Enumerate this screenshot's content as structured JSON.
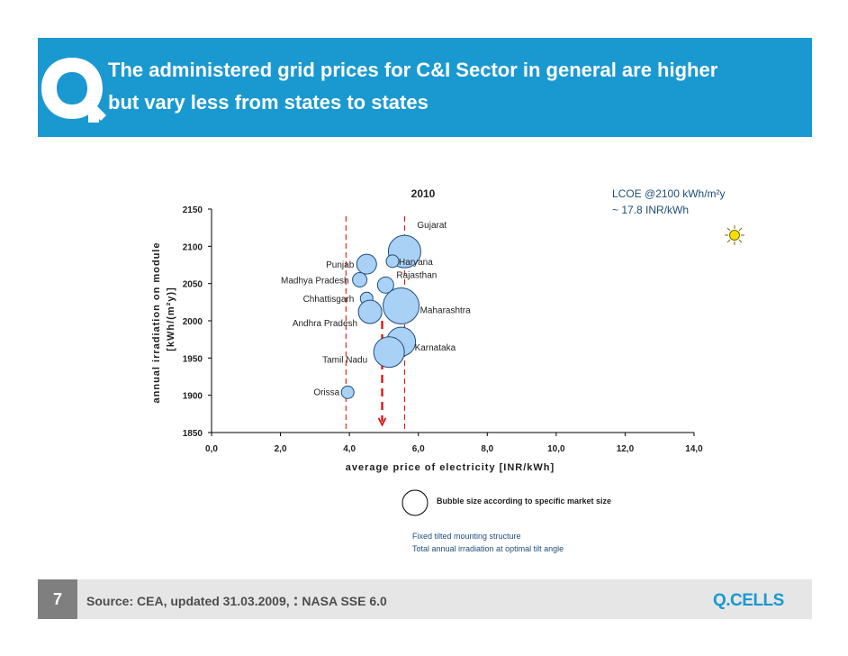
{
  "slide": {
    "title_line1": "The administered grid prices for C&I Sector in general are higher",
    "title_line2": "but vary less from states to states",
    "page_number": "7",
    "source": "Source: CEA, updated 31.03.2009, ",
    "source_colon": ":",
    "source_tail": " NASA SSE 6.0",
    "logo_text": "Q.CELLS"
  },
  "colors": {
    "title_bar": "#1a99d1",
    "bubble_fill": "#a9d0f5",
    "bubble_stroke": "#1f4e79",
    "marker_line": "#e00000",
    "axis": "#000000",
    "text_blue": "#1f4e79"
  },
  "chart_data": {
    "type": "scatter",
    "title": "2010",
    "xlabel": "average price of electricity [INR/kWh]",
    "ylabel_line1": "annual irradiation on module",
    "ylabel_line2": "[kWh/(m²y)]",
    "xlim": [
      0,
      14
    ],
    "ylim": [
      1850,
      2150
    ],
    "x_ticks": [
      "0,0",
      "2,0",
      "4,0",
      "6,0",
      "8,0",
      "10,0",
      "12,0",
      "14,0"
    ],
    "y_ticks": [
      "1850",
      "1900",
      "1950",
      "2000",
      "2050",
      "2100",
      "2150"
    ],
    "points": [
      {
        "label": "Gujarat",
        "x": 5.6,
        "y": 2093,
        "size": 18
      },
      {
        "label": "Haryana",
        "x": 5.25,
        "y": 2080,
        "size": 7
      },
      {
        "label": "Punjab",
        "x": 4.5,
        "y": 2076,
        "size": 11
      },
      {
        "label": "Rajasthan",
        "x": 5.05,
        "y": 2048,
        "size": 9
      },
      {
        "label": "Madhya Pradesh",
        "x": 4.3,
        "y": 2055,
        "size": 8
      },
      {
        "label": "Chhattisgarh",
        "x": 4.5,
        "y": 2030,
        "size": 7
      },
      {
        "label": "Maharashtra",
        "x": 5.5,
        "y": 2020,
        "size": 20
      },
      {
        "label": "Andhra Pradesh",
        "x": 4.6,
        "y": 2012,
        "size": 13
      },
      {
        "label": "Karnataka",
        "x": 5.5,
        "y": 1972,
        "size": 16
      },
      {
        "label": "Tamil Nadu",
        "x": 5.15,
        "y": 1958,
        "size": 17
      },
      {
        "label": "Orissa",
        "x": 3.95,
        "y": 1904,
        "size": 7
      }
    ],
    "reference_lines": {
      "left_x": 3.9,
      "right_x": 5.6,
      "marker_x": 4.95,
      "marker_y_top": 2000,
      "marker_y_bottom": 1860
    },
    "annotations": {
      "lcoe_line1": "LCOE @2100 kWh/m²y",
      "lcoe_line2": "~ 17.8 INR/kWh",
      "bubble_legend": "Bubble size according to specific market size",
      "note_line1": "Fixed tilted mounting structure",
      "note_line2": "Total annual irradiation at optimal tilt angle"
    }
  }
}
